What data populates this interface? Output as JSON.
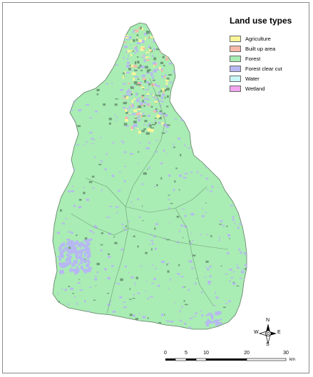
{
  "legend": {
    "title": "Land use types",
    "items": [
      {
        "label": "Agriculture",
        "color": "#fbf59a"
      },
      {
        "label": "Built up area",
        "color": "#f7b9a8"
      },
      {
        "label": "Forest",
        "color": "#a9ecb4"
      },
      {
        "label": "Forest clear cut",
        "color": "#b7b8f2"
      },
      {
        "label": "Water",
        "color": "#c9f6f7"
      },
      {
        "label": "Wetland",
        "color": "#f2a5f0"
      }
    ]
  },
  "north_arrow": {
    "n": "N",
    "s": "S",
    "e": "E",
    "w": "W"
  },
  "scale_bar": {
    "ticks": [
      "0",
      "5",
      "10",
      "20",
      "30"
    ],
    "unit": "km"
  },
  "colors": {
    "forest": "#a9ecb4",
    "clearcut": "#b7b8f2",
    "agriculture": "#fbf59a",
    "builtup": "#f7b9a8",
    "outline": "#5d7d62",
    "frame": "#8a8a8a"
  }
}
